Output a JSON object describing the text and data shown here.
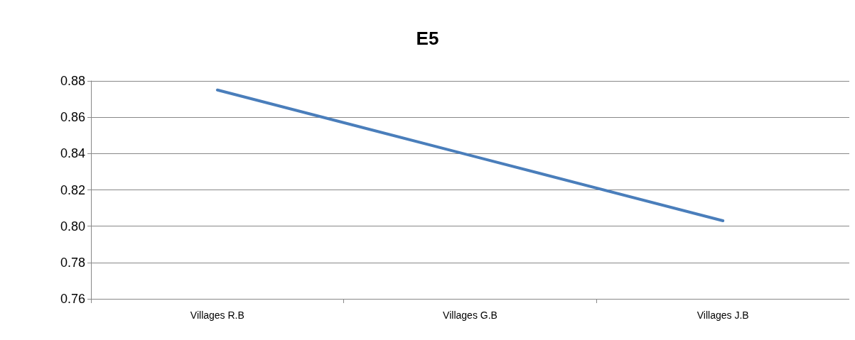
{
  "chart_data": {
    "type": "line",
    "title": "E5",
    "categories": [
      "Villages R.B",
      "Villages G.B",
      "Villages J.B"
    ],
    "series": [
      {
        "color": "#4a7ebb",
        "values": [
          0.875,
          0.839,
          0.803
        ]
      }
    ],
    "ylim": [
      0.76,
      0.88
    ],
    "yticks": [
      {
        "value": 0.76,
        "label": "0.76"
      },
      {
        "value": 0.78,
        "label": "0.78"
      },
      {
        "value": 0.8,
        "label": "0.80"
      },
      {
        "value": 0.82,
        "label": "0.82"
      },
      {
        "value": 0.84,
        "label": "0.84"
      },
      {
        "value": 0.86,
        "label": "0.86"
      },
      {
        "value": 0.88,
        "label": "0.88"
      }
    ],
    "grid": "y",
    "marker": "none",
    "line_style": "solid"
  }
}
